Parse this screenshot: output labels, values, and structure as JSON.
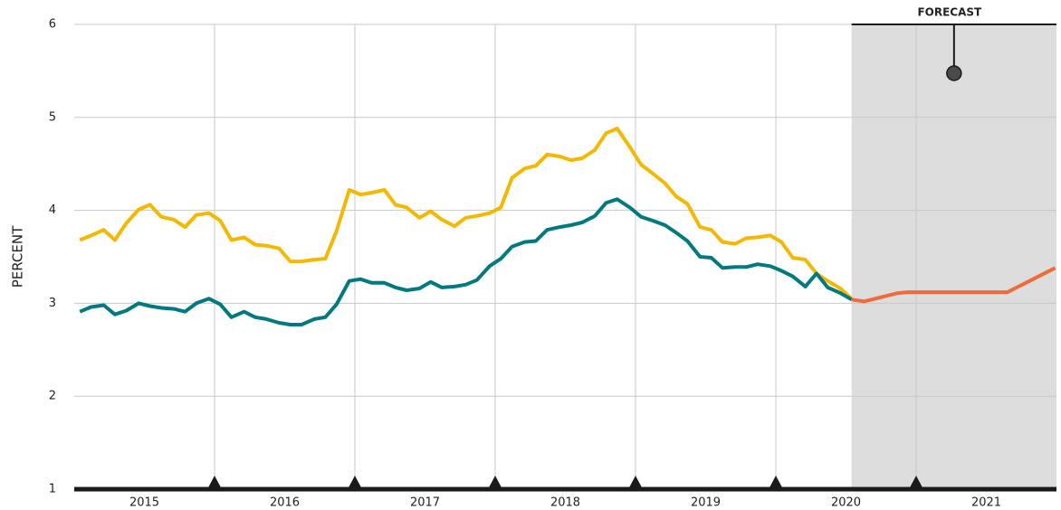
{
  "chart_data": {
    "type": "line",
    "ylabel": "PERCENT",
    "annotation": "FORECAST",
    "forecast_start": 2020.54,
    "xlim": [
      2015,
      2022
    ],
    "ylim": [
      1,
      6
    ],
    "yticks": [
      1,
      2,
      3,
      4,
      5,
      6
    ],
    "xticks": [
      {
        "value": 2015.5,
        "label": "2015"
      },
      {
        "value": 2016.5,
        "label": "2016"
      },
      {
        "value": 2017.5,
        "label": "2017"
      },
      {
        "value": 2018.5,
        "label": "2018"
      },
      {
        "value": 2019.5,
        "label": "2019"
      },
      {
        "value": 2020.5,
        "label": "2020"
      },
      {
        "value": 2021.5,
        "label": "2021"
      }
    ],
    "xgrid": [
      2016,
      2017,
      2018,
      2019,
      2020,
      2021
    ],
    "grid": true,
    "series": [
      {
        "color": "#f5b800",
        "x": [
          2015.04,
          2015.12,
          2015.21,
          2015.29,
          2015.37,
          2015.46,
          2015.54,
          2015.62,
          2015.71,
          2015.79,
          2015.87,
          2015.96,
          2016.04,
          2016.12,
          2016.21,
          2016.29,
          2016.37,
          2016.46,
          2016.54,
          2016.62,
          2016.71,
          2016.79,
          2016.87,
          2016.96,
          2017.04,
          2017.12,
          2017.21,
          2017.29,
          2017.37,
          2017.46,
          2017.54,
          2017.62,
          2017.71,
          2017.79,
          2017.87,
          2017.96,
          2018.04,
          2018.12,
          2018.21,
          2018.29,
          2018.37,
          2018.46,
          2018.54,
          2018.62,
          2018.71,
          2018.79,
          2018.87,
          2018.96,
          2019.04,
          2019.12,
          2019.21,
          2019.29,
          2019.37,
          2019.46,
          2019.54,
          2019.62,
          2019.71,
          2019.79,
          2019.87,
          2019.96,
          2020.04,
          2020.12,
          2020.21,
          2020.29,
          2020.37,
          2020.46,
          2020.54
        ],
        "values": [
          3.68,
          3.73,
          3.79,
          3.68,
          3.86,
          4.01,
          4.06,
          3.93,
          3.9,
          3.82,
          3.95,
          3.97,
          3.89,
          3.68,
          3.71,
          3.63,
          3.62,
          3.59,
          3.45,
          3.45,
          3.47,
          3.48,
          3.78,
          4.22,
          4.17,
          4.19,
          4.22,
          4.06,
          4.03,
          3.92,
          3.99,
          3.9,
          3.83,
          3.92,
          3.94,
          3.97,
          4.03,
          4.35,
          4.45,
          4.48,
          4.6,
          4.58,
          4.54,
          4.56,
          4.65,
          4.83,
          4.88,
          4.68,
          4.49,
          4.4,
          4.29,
          4.15,
          4.07,
          3.82,
          3.79,
          3.66,
          3.64,
          3.7,
          3.71,
          3.73,
          3.66,
          3.49,
          3.47,
          3.32,
          3.24,
          3.16,
          3.05
        ]
      },
      {
        "color": "#007a80",
        "x": [
          2015.04,
          2015.12,
          2015.21,
          2015.29,
          2015.37,
          2015.46,
          2015.54,
          2015.62,
          2015.71,
          2015.79,
          2015.87,
          2015.96,
          2016.04,
          2016.12,
          2016.21,
          2016.29,
          2016.37,
          2016.46,
          2016.54,
          2016.62,
          2016.71,
          2016.79,
          2016.87,
          2016.96,
          2017.04,
          2017.12,
          2017.21,
          2017.29,
          2017.37,
          2017.46,
          2017.54,
          2017.62,
          2017.71,
          2017.79,
          2017.87,
          2017.96,
          2018.04,
          2018.12,
          2018.21,
          2018.29,
          2018.37,
          2018.46,
          2018.54,
          2018.62,
          2018.71,
          2018.79,
          2018.87,
          2018.96,
          2019.04,
          2019.12,
          2019.21,
          2019.29,
          2019.37,
          2019.46,
          2019.54,
          2019.62,
          2019.71,
          2019.79,
          2019.87,
          2019.96,
          2020.04,
          2020.12,
          2020.21,
          2020.29,
          2020.37,
          2020.46,
          2020.54
        ],
        "values": [
          2.91,
          2.96,
          2.98,
          2.88,
          2.92,
          3.0,
          2.97,
          2.95,
          2.94,
          2.91,
          3.0,
          3.05,
          2.99,
          2.85,
          2.91,
          2.85,
          2.83,
          2.79,
          2.77,
          2.77,
          2.83,
          2.85,
          2.99,
          3.24,
          3.26,
          3.22,
          3.22,
          3.17,
          3.14,
          3.16,
          3.23,
          3.17,
          3.18,
          3.2,
          3.25,
          3.4,
          3.48,
          3.61,
          3.66,
          3.67,
          3.79,
          3.82,
          3.84,
          3.87,
          3.94,
          4.08,
          4.12,
          4.03,
          3.93,
          3.89,
          3.84,
          3.76,
          3.67,
          3.5,
          3.49,
          3.38,
          3.39,
          3.39,
          3.42,
          3.4,
          3.35,
          3.29,
          3.18,
          3.32,
          3.17,
          3.11,
          3.04
        ]
      },
      {
        "color": "#f26a3a",
        "x": [
          2020.54,
          2020.63,
          2020.87,
          2020.94,
          2021.65,
          2021.99
        ],
        "values": [
          3.04,
          3.02,
          3.11,
          3.12,
          3.12,
          3.38
        ]
      }
    ]
  }
}
